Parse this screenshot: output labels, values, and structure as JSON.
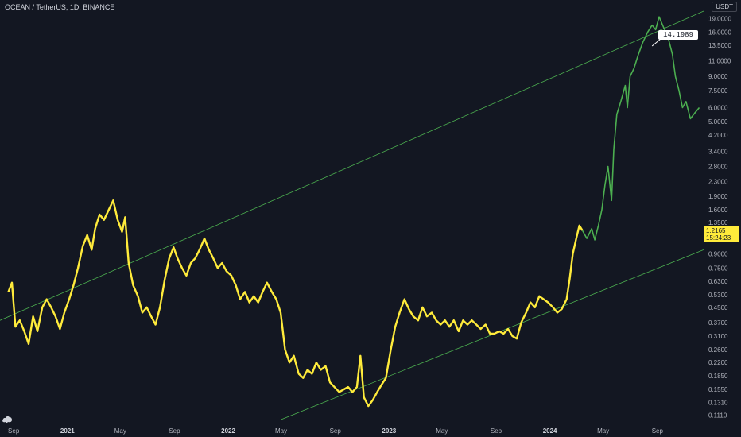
{
  "header": {
    "symbol_title": "OCEAN / TetherUS, 1D, BINANCE",
    "currency_label": "USDT"
  },
  "current_price": {
    "value": "1.2165",
    "countdown": "15:24:23",
    "color": "#ffeb3b"
  },
  "callout": {
    "text": "14.1989"
  },
  "colors": {
    "background": "#131722",
    "actual_line": "#ffeb3b",
    "projection_line": "#4caf50",
    "channel_lines": "#4caf50",
    "axis_text": "#b2b5be"
  },
  "icons": [
    "tradingview-logo-icon"
  ],
  "chart_data": {
    "type": "line",
    "title": "OCEAN / TetherUS, 1D, BINANCE",
    "xlabel": "",
    "ylabel": "USDT",
    "y_scale": "log",
    "ylim": [
      0.105,
      21
    ],
    "xlim": [
      "2020-08-01",
      "2024-12-15"
    ],
    "grid": false,
    "x_ticks": [
      {
        "label": "Sep",
        "date": "2020-09-01"
      },
      {
        "label": "2021",
        "date": "2021-01-01"
      },
      {
        "label": "May",
        "date": "2021-05-01"
      },
      {
        "label": "Sep",
        "date": "2021-09-01"
      },
      {
        "label": "2022",
        "date": "2022-01-01"
      },
      {
        "label": "May",
        "date": "2022-05-01"
      },
      {
        "label": "Sep",
        "date": "2022-09-01"
      },
      {
        "label": "2023",
        "date": "2023-01-01"
      },
      {
        "label": "May",
        "date": "2023-05-01"
      },
      {
        "label": "Sep",
        "date": "2023-09-01"
      },
      {
        "label": "2024",
        "date": "2024-01-01"
      },
      {
        "label": "May",
        "date": "2024-05-01"
      },
      {
        "label": "Sep",
        "date": "2024-09-01"
      }
    ],
    "y_ticks": [
      "19.0000",
      "16.0000",
      "13.5000",
      "11.0000",
      "9.0000",
      "7.5000",
      "6.0000",
      "5.0000",
      "4.2000",
      "3.4000",
      "2.8000",
      "2.3000",
      "1.9000",
      "1.6000",
      "1.3500",
      "1.1000",
      "0.9000",
      "0.7500",
      "0.6300",
      "0.5300",
      "0.4500",
      "0.3700",
      "0.3100",
      "0.2600",
      "0.2200",
      "0.1850",
      "0.1550",
      "0.1310",
      "0.1110"
    ],
    "series": [
      {
        "style": "actual",
        "color": "#ffeb3b",
        "points": [
          [
            "2020-08-20",
            0.55
          ],
          [
            "2020-08-28",
            0.62
          ],
          [
            "2020-09-05",
            0.35
          ],
          [
            "2020-09-15",
            0.38
          ],
          [
            "2020-09-25",
            0.33
          ],
          [
            "2020-10-05",
            0.28
          ],
          [
            "2020-10-15",
            0.4
          ],
          [
            "2020-10-25",
            0.33
          ],
          [
            "2020-11-05",
            0.45
          ],
          [
            "2020-11-15",
            0.5
          ],
          [
            "2020-11-25",
            0.45
          ],
          [
            "2020-12-05",
            0.4
          ],
          [
            "2020-12-15",
            0.34
          ],
          [
            "2020-12-25",
            0.42
          ],
          [
            "2021-01-05",
            0.5
          ],
          [
            "2021-01-15",
            0.6
          ],
          [
            "2021-01-25",
            0.75
          ],
          [
            "2021-02-05",
            1.0
          ],
          [
            "2021-02-15",
            1.15
          ],
          [
            "2021-02-25",
            0.95
          ],
          [
            "2021-03-05",
            1.25
          ],
          [
            "2021-03-15",
            1.5
          ],
          [
            "2021-03-25",
            1.4
          ],
          [
            "2021-04-05",
            1.6
          ],
          [
            "2021-04-15",
            1.8
          ],
          [
            "2021-04-25",
            1.4
          ],
          [
            "2021-05-05",
            1.2
          ],
          [
            "2021-05-12",
            1.45
          ],
          [
            "2021-05-20",
            0.8
          ],
          [
            "2021-05-30",
            0.6
          ],
          [
            "2021-06-10",
            0.52
          ],
          [
            "2021-06-20",
            0.42
          ],
          [
            "2021-06-30",
            0.45
          ],
          [
            "2021-07-10",
            0.4
          ],
          [
            "2021-07-20",
            0.36
          ],
          [
            "2021-07-30",
            0.45
          ],
          [
            "2021-08-10",
            0.65
          ],
          [
            "2021-08-20",
            0.85
          ],
          [
            "2021-08-30",
            0.98
          ],
          [
            "2021-09-08",
            0.85
          ],
          [
            "2021-09-18",
            0.75
          ],
          [
            "2021-09-28",
            0.68
          ],
          [
            "2021-10-08",
            0.8
          ],
          [
            "2021-10-18",
            0.85
          ],
          [
            "2021-10-28",
            0.95
          ],
          [
            "2021-11-08",
            1.1
          ],
          [
            "2021-11-18",
            0.95
          ],
          [
            "2021-11-28",
            0.85
          ],
          [
            "2021-12-08",
            0.75
          ],
          [
            "2021-12-18",
            0.8
          ],
          [
            "2021-12-28",
            0.72
          ],
          [
            "2022-01-08",
            0.68
          ],
          [
            "2022-01-18",
            0.6
          ],
          [
            "2022-01-28",
            0.5
          ],
          [
            "2022-02-08",
            0.55
          ],
          [
            "2022-02-18",
            0.48
          ],
          [
            "2022-02-28",
            0.52
          ],
          [
            "2022-03-10",
            0.48
          ],
          [
            "2022-03-20",
            0.55
          ],
          [
            "2022-03-30",
            0.62
          ],
          [
            "2022-04-10",
            0.55
          ],
          [
            "2022-04-20",
            0.5
          ],
          [
            "2022-04-30",
            0.42
          ],
          [
            "2022-05-10",
            0.26
          ],
          [
            "2022-05-20",
            0.22
          ],
          [
            "2022-05-30",
            0.24
          ],
          [
            "2022-06-10",
            0.19
          ],
          [
            "2022-06-20",
            0.18
          ],
          [
            "2022-06-30",
            0.2
          ],
          [
            "2022-07-10",
            0.19
          ],
          [
            "2022-07-20",
            0.22
          ],
          [
            "2022-07-30",
            0.2
          ],
          [
            "2022-08-10",
            0.21
          ],
          [
            "2022-08-20",
            0.17
          ],
          [
            "2022-08-30",
            0.16
          ],
          [
            "2022-09-10",
            0.15
          ],
          [
            "2022-09-20",
            0.155
          ],
          [
            "2022-09-30",
            0.16
          ],
          [
            "2022-10-10",
            0.15
          ],
          [
            "2022-10-20",
            0.16
          ],
          [
            "2022-10-28",
            0.24
          ],
          [
            "2022-11-05",
            0.14
          ],
          [
            "2022-11-15",
            0.125
          ],
          [
            "2022-11-25",
            0.135
          ],
          [
            "2022-12-05",
            0.15
          ],
          [
            "2022-12-15",
            0.165
          ],
          [
            "2022-12-25",
            0.18
          ],
          [
            "2023-01-05",
            0.26
          ],
          [
            "2023-01-15",
            0.35
          ],
          [
            "2023-01-25",
            0.42
          ],
          [
            "2023-02-05",
            0.5
          ],
          [
            "2023-02-15",
            0.44
          ],
          [
            "2023-02-25",
            0.4
          ],
          [
            "2023-03-08",
            0.38
          ],
          [
            "2023-03-18",
            0.45
          ],
          [
            "2023-03-28",
            0.4
          ],
          [
            "2023-04-08",
            0.42
          ],
          [
            "2023-04-18",
            0.38
          ],
          [
            "2023-04-28",
            0.36
          ],
          [
            "2023-05-08",
            0.38
          ],
          [
            "2023-05-18",
            0.35
          ],
          [
            "2023-05-28",
            0.38
          ],
          [
            "2023-06-08",
            0.33
          ],
          [
            "2023-06-18",
            0.38
          ],
          [
            "2023-06-28",
            0.36
          ],
          [
            "2023-07-08",
            0.38
          ],
          [
            "2023-07-18",
            0.36
          ],
          [
            "2023-07-28",
            0.34
          ],
          [
            "2023-08-08",
            0.36
          ],
          [
            "2023-08-18",
            0.32
          ],
          [
            "2023-08-28",
            0.32
          ],
          [
            "2023-09-08",
            0.33
          ],
          [
            "2023-09-18",
            0.32
          ],
          [
            "2023-09-28",
            0.34
          ],
          [
            "2023-10-08",
            0.31
          ],
          [
            "2023-10-18",
            0.3
          ],
          [
            "2023-10-28",
            0.37
          ],
          [
            "2023-11-08",
            0.42
          ],
          [
            "2023-11-18",
            0.48
          ],
          [
            "2023-11-28",
            0.45
          ],
          [
            "2023-12-08",
            0.52
          ],
          [
            "2023-12-18",
            0.5
          ],
          [
            "2023-12-28",
            0.48
          ],
          [
            "2024-01-08",
            0.45
          ],
          [
            "2024-01-18",
            0.42
          ],
          [
            "2024-01-28",
            0.44
          ],
          [
            "2024-02-08",
            0.5
          ],
          [
            "2024-02-15",
            0.65
          ],
          [
            "2024-02-22",
            0.9
          ],
          [
            "2024-03-01",
            1.1
          ],
          [
            "2024-03-08",
            1.3
          ],
          [
            "2024-03-15",
            1.22
          ]
        ]
      },
      {
        "style": "projection",
        "color": "#4caf50",
        "points": [
          [
            "2024-03-15",
            1.22
          ],
          [
            "2024-03-25",
            1.1
          ],
          [
            "2024-04-05",
            1.25
          ],
          [
            "2024-04-12",
            1.08
          ],
          [
            "2024-04-20",
            1.3
          ],
          [
            "2024-04-28",
            1.6
          ],
          [
            "2024-05-05",
            2.2
          ],
          [
            "2024-05-12",
            2.8
          ],
          [
            "2024-05-20",
            1.8
          ],
          [
            "2024-05-25",
            3.5
          ],
          [
            "2024-06-01",
            5.5
          ],
          [
            "2024-06-10",
            6.5
          ],
          [
            "2024-06-20",
            8.0
          ],
          [
            "2024-06-25",
            6.0
          ],
          [
            "2024-07-01",
            9.0
          ],
          [
            "2024-07-10",
            10.0
          ],
          [
            "2024-07-20",
            12.0
          ],
          [
            "2024-07-30",
            14.0
          ],
          [
            "2024-08-10",
            16.0
          ],
          [
            "2024-08-20",
            17.5
          ],
          [
            "2024-08-28",
            16.5
          ],
          [
            "2024-09-05",
            19.5
          ],
          [
            "2024-09-15",
            17.0
          ],
          [
            "2024-09-25",
            15.0
          ],
          [
            "2024-10-05",
            12.0
          ],
          [
            "2024-10-12",
            9.0
          ],
          [
            "2024-10-20",
            7.5
          ],
          [
            "2024-10-28",
            6.0
          ],
          [
            "2024-11-05",
            6.5
          ],
          [
            "2024-11-15",
            5.2
          ],
          [
            "2024-11-25",
            5.6
          ],
          [
            "2024-12-05",
            6.0
          ]
        ]
      }
    ],
    "trendlines": [
      {
        "name": "upper",
        "from": [
          "2020-08-01",
          0.38
        ],
        "to": [
          "2024-12-15",
          21.0
        ]
      },
      {
        "name": "lower",
        "from": [
          "2022-05-01",
          0.105
        ],
        "to": [
          "2024-12-15",
          0.95
        ]
      }
    ],
    "annotations": [
      {
        "text": "14.1989",
        "at": [
          "2024-08-20",
          14.1989
        ]
      }
    ]
  }
}
